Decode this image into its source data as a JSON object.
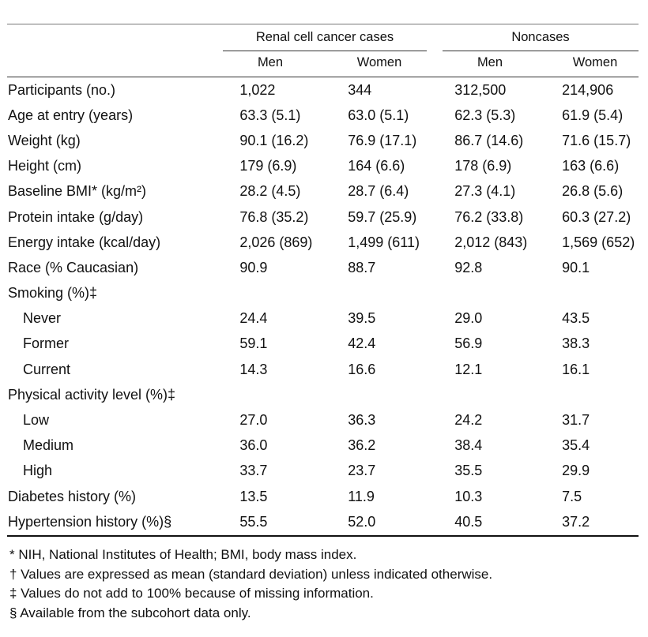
{
  "header": {
    "group1": "Renal cell cancer cases",
    "group2": "Noncases",
    "sub": [
      "Men",
      "Women",
      "Men",
      "Women"
    ]
  },
  "rows": [
    {
      "label": "Participants (no.)",
      "values": [
        "1,022",
        "344",
        "312,500",
        "214,906"
      ]
    },
    {
      "label": "Age at entry (years)",
      "values": [
        "63.3 (5.1)",
        "63.0 (5.1)",
        "62.3 (5.3)",
        "61.9 (5.4)"
      ]
    },
    {
      "label": "Weight (kg)",
      "values": [
        "90.1 (16.2)",
        "76.9 (17.1)",
        "86.7 (14.6)",
        "71.6 (15.7)"
      ]
    },
    {
      "label": "Height (cm)",
      "values": [
        "179 (6.9)",
        "164 (6.6)",
        "178 (6.9)",
        "163 (6.6)"
      ]
    },
    {
      "label": "Baseline BMI* (kg/m²)",
      "values": [
        "28.2 (4.5)",
        "28.7 (6.4)",
        "27.3 (4.1)",
        "26.8 (5.6)"
      ]
    },
    {
      "label": "Protein intake (g/day)",
      "values": [
        "76.8 (35.2)",
        "59.7 (25.9)",
        "76.2 (33.8)",
        "60.3 (27.2)"
      ]
    },
    {
      "label": "Energy intake (kcal/day)",
      "values": [
        "2,026 (869)",
        "1,499 (611)",
        "2,012 (843)",
        "1,569 (652)"
      ]
    },
    {
      "label": "Race (% Caucasian)",
      "values": [
        "90.9",
        "88.7",
        "92.8",
        "90.1"
      ]
    },
    {
      "label": "Smoking (%)‡",
      "values": [
        "",
        "",
        "",
        ""
      ]
    },
    {
      "label": "Never",
      "indent": true,
      "values": [
        "24.4",
        "39.5",
        "29.0",
        "43.5"
      ]
    },
    {
      "label": "Former",
      "indent": true,
      "values": [
        "59.1",
        "42.4",
        "56.9",
        "38.3"
      ]
    },
    {
      "label": "Current",
      "indent": true,
      "values": [
        "14.3",
        "16.6",
        "12.1",
        "16.1"
      ]
    },
    {
      "label": "Physical activity level (%)‡",
      "values": [
        "",
        "",
        "",
        ""
      ]
    },
    {
      "label": "Low",
      "indent": true,
      "values": [
        "27.0",
        "36.3",
        "24.2",
        "31.7"
      ]
    },
    {
      "label": "Medium",
      "indent": true,
      "values": [
        "36.0",
        "36.2",
        "38.4",
        "35.4"
      ]
    },
    {
      "label": "High",
      "indent": true,
      "values": [
        "33.7",
        "23.7",
        "35.5",
        "29.9"
      ]
    },
    {
      "label": "Diabetes history (%)",
      "values": [
        "13.5",
        "11.9",
        "10.3",
        "7.5"
      ]
    },
    {
      "label": "Hypertension history (%)§",
      "values": [
        "55.5",
        "52.0",
        "40.5",
        "37.2"
      ]
    }
  ],
  "footnotes": [
    "* NIH, National Institutes of Health; BMI, body mass index.",
    "† Values are expressed as mean (standard deviation) unless indicated otherwise.",
    "‡ Values do not add to 100% because of missing information.",
    "§ Available from the subcohort data only."
  ]
}
